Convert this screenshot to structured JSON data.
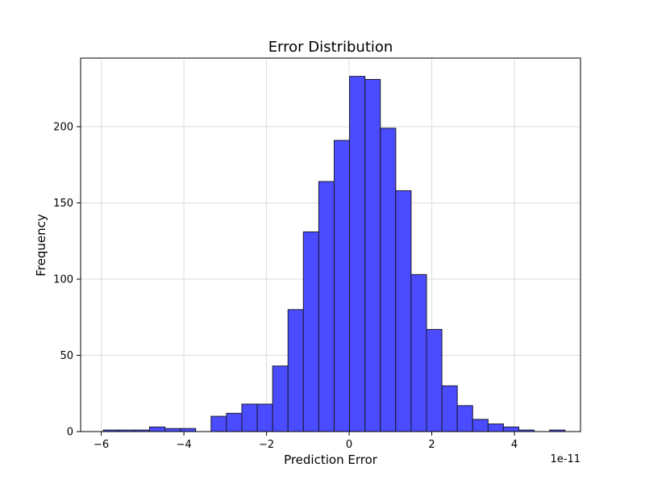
{
  "chart_data": {
    "type": "bar",
    "title": "Error Distribution",
    "xlabel": "Prediction Error",
    "ylabel": "Frequency",
    "x_offset_label": "1e-11",
    "x_scale_note": "x values in units of 1e-11",
    "xlim": [
      -6.5,
      5.6
    ],
    "ylim": [
      0,
      245
    ],
    "x_ticks": [
      -6,
      -4,
      -2,
      0,
      2,
      4
    ],
    "x_tick_labels": [
      "−6",
      "−4",
      "−2",
      "0",
      "2",
      "4"
    ],
    "y_ticks": [
      0,
      50,
      100,
      150,
      200
    ],
    "y_tick_labels": [
      "0",
      "50",
      "100",
      "150",
      "200"
    ],
    "grid": true,
    "bin_start": -5.95,
    "bin_width": 0.3725,
    "values": [
      1,
      1,
      1,
      3,
      2,
      2,
      0,
      10,
      12,
      18,
      18,
      43,
      80,
      131,
      164,
      191,
      233,
      231,
      199,
      158,
      103,
      67,
      30,
      17,
      8,
      5,
      3,
      1,
      0,
      1
    ],
    "colors": {
      "bar_fill": "#4b4bff",
      "bar_edge": "#1a1a2e",
      "grid": "#dddddd",
      "axis": "#000000"
    }
  }
}
